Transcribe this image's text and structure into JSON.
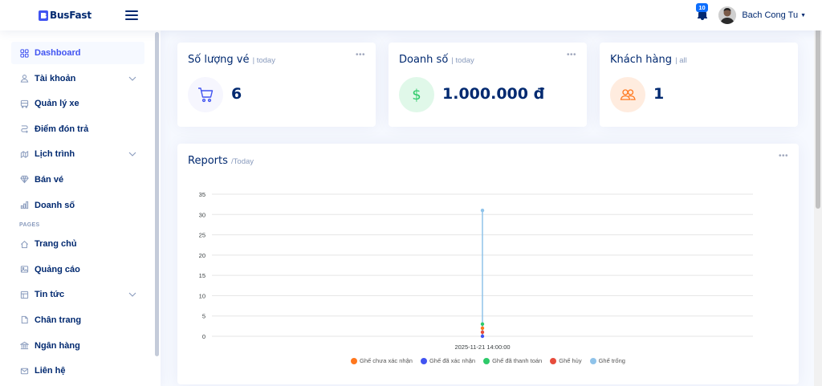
{
  "header": {
    "brand": "BusFast",
    "notifications_count": "10",
    "user_name": "Bach Cong Tu"
  },
  "sidebar": {
    "items": [
      {
        "label": "Dashboard",
        "icon": "grid-icon",
        "active": true
      },
      {
        "label": "Tài khoản",
        "icon": "person-icon",
        "expandable": true
      },
      {
        "label": "Quản lý xe",
        "icon": "bus-icon"
      },
      {
        "label": "Điểm đón trả",
        "icon": "route-icon"
      },
      {
        "label": "Lịch trình",
        "icon": "calendar-icon",
        "expandable": true
      },
      {
        "label": "Bán vé",
        "icon": "gem-icon"
      },
      {
        "label": "Doanh số",
        "icon": "bar-chart-icon"
      }
    ],
    "pages_heading": "PAGES",
    "pages": [
      {
        "label": "Trang chủ",
        "icon": "house-icon"
      },
      {
        "label": "Quảng cáo",
        "icon": "image-icon"
      },
      {
        "label": "Tin tức",
        "icon": "layout-icon",
        "expandable": true
      },
      {
        "label": "Chân trang",
        "icon": "file-icon"
      },
      {
        "label": "Ngân hàng",
        "icon": "bank-icon"
      },
      {
        "label": "Liên hệ",
        "icon": "envelope-icon"
      }
    ]
  },
  "cards": {
    "tickets": {
      "title": "Số lượng vé",
      "subtitle": "| today",
      "value": "6",
      "icon": "cart-icon",
      "accent": "#4154f1",
      "bg": "#f6f6fe"
    },
    "revenue": {
      "title": "Doanh số",
      "subtitle": "| today",
      "value": "1.000.000 đ",
      "icon": "currency-dollar-icon",
      "accent": "#2eca6a",
      "bg": "#e0f8e9"
    },
    "customers": {
      "title": "Khách hàng",
      "subtitle": "| all",
      "value": "1",
      "icon": "people-icon",
      "accent": "#ff771d",
      "bg": "#ffecdf"
    }
  },
  "reports": {
    "title": "Reports",
    "subtitle": "/Today"
  },
  "chart_data": {
    "type": "line",
    "x": [
      "2025-11-21 14:00:00"
    ],
    "ylim": [
      0,
      35
    ],
    "yticks": [
      0,
      5,
      10,
      15,
      20,
      25,
      30,
      35
    ],
    "grid": true,
    "legend_position": "bottom",
    "series": [
      {
        "name": "Ghế chưa xác nhận",
        "color": "#ff771d",
        "values": [
          2
        ]
      },
      {
        "name": "Ghế đã xác nhận",
        "color": "#4154f1",
        "values": [
          0
        ]
      },
      {
        "name": "Ghế đã thanh toán",
        "color": "#2eca6a",
        "values": [
          3
        ]
      },
      {
        "name": "Ghế hủy",
        "color": "#e74c3c",
        "values": [
          1
        ]
      },
      {
        "name": "Ghế trống",
        "color": "#8fc3ea",
        "values": [
          31
        ]
      }
    ]
  }
}
